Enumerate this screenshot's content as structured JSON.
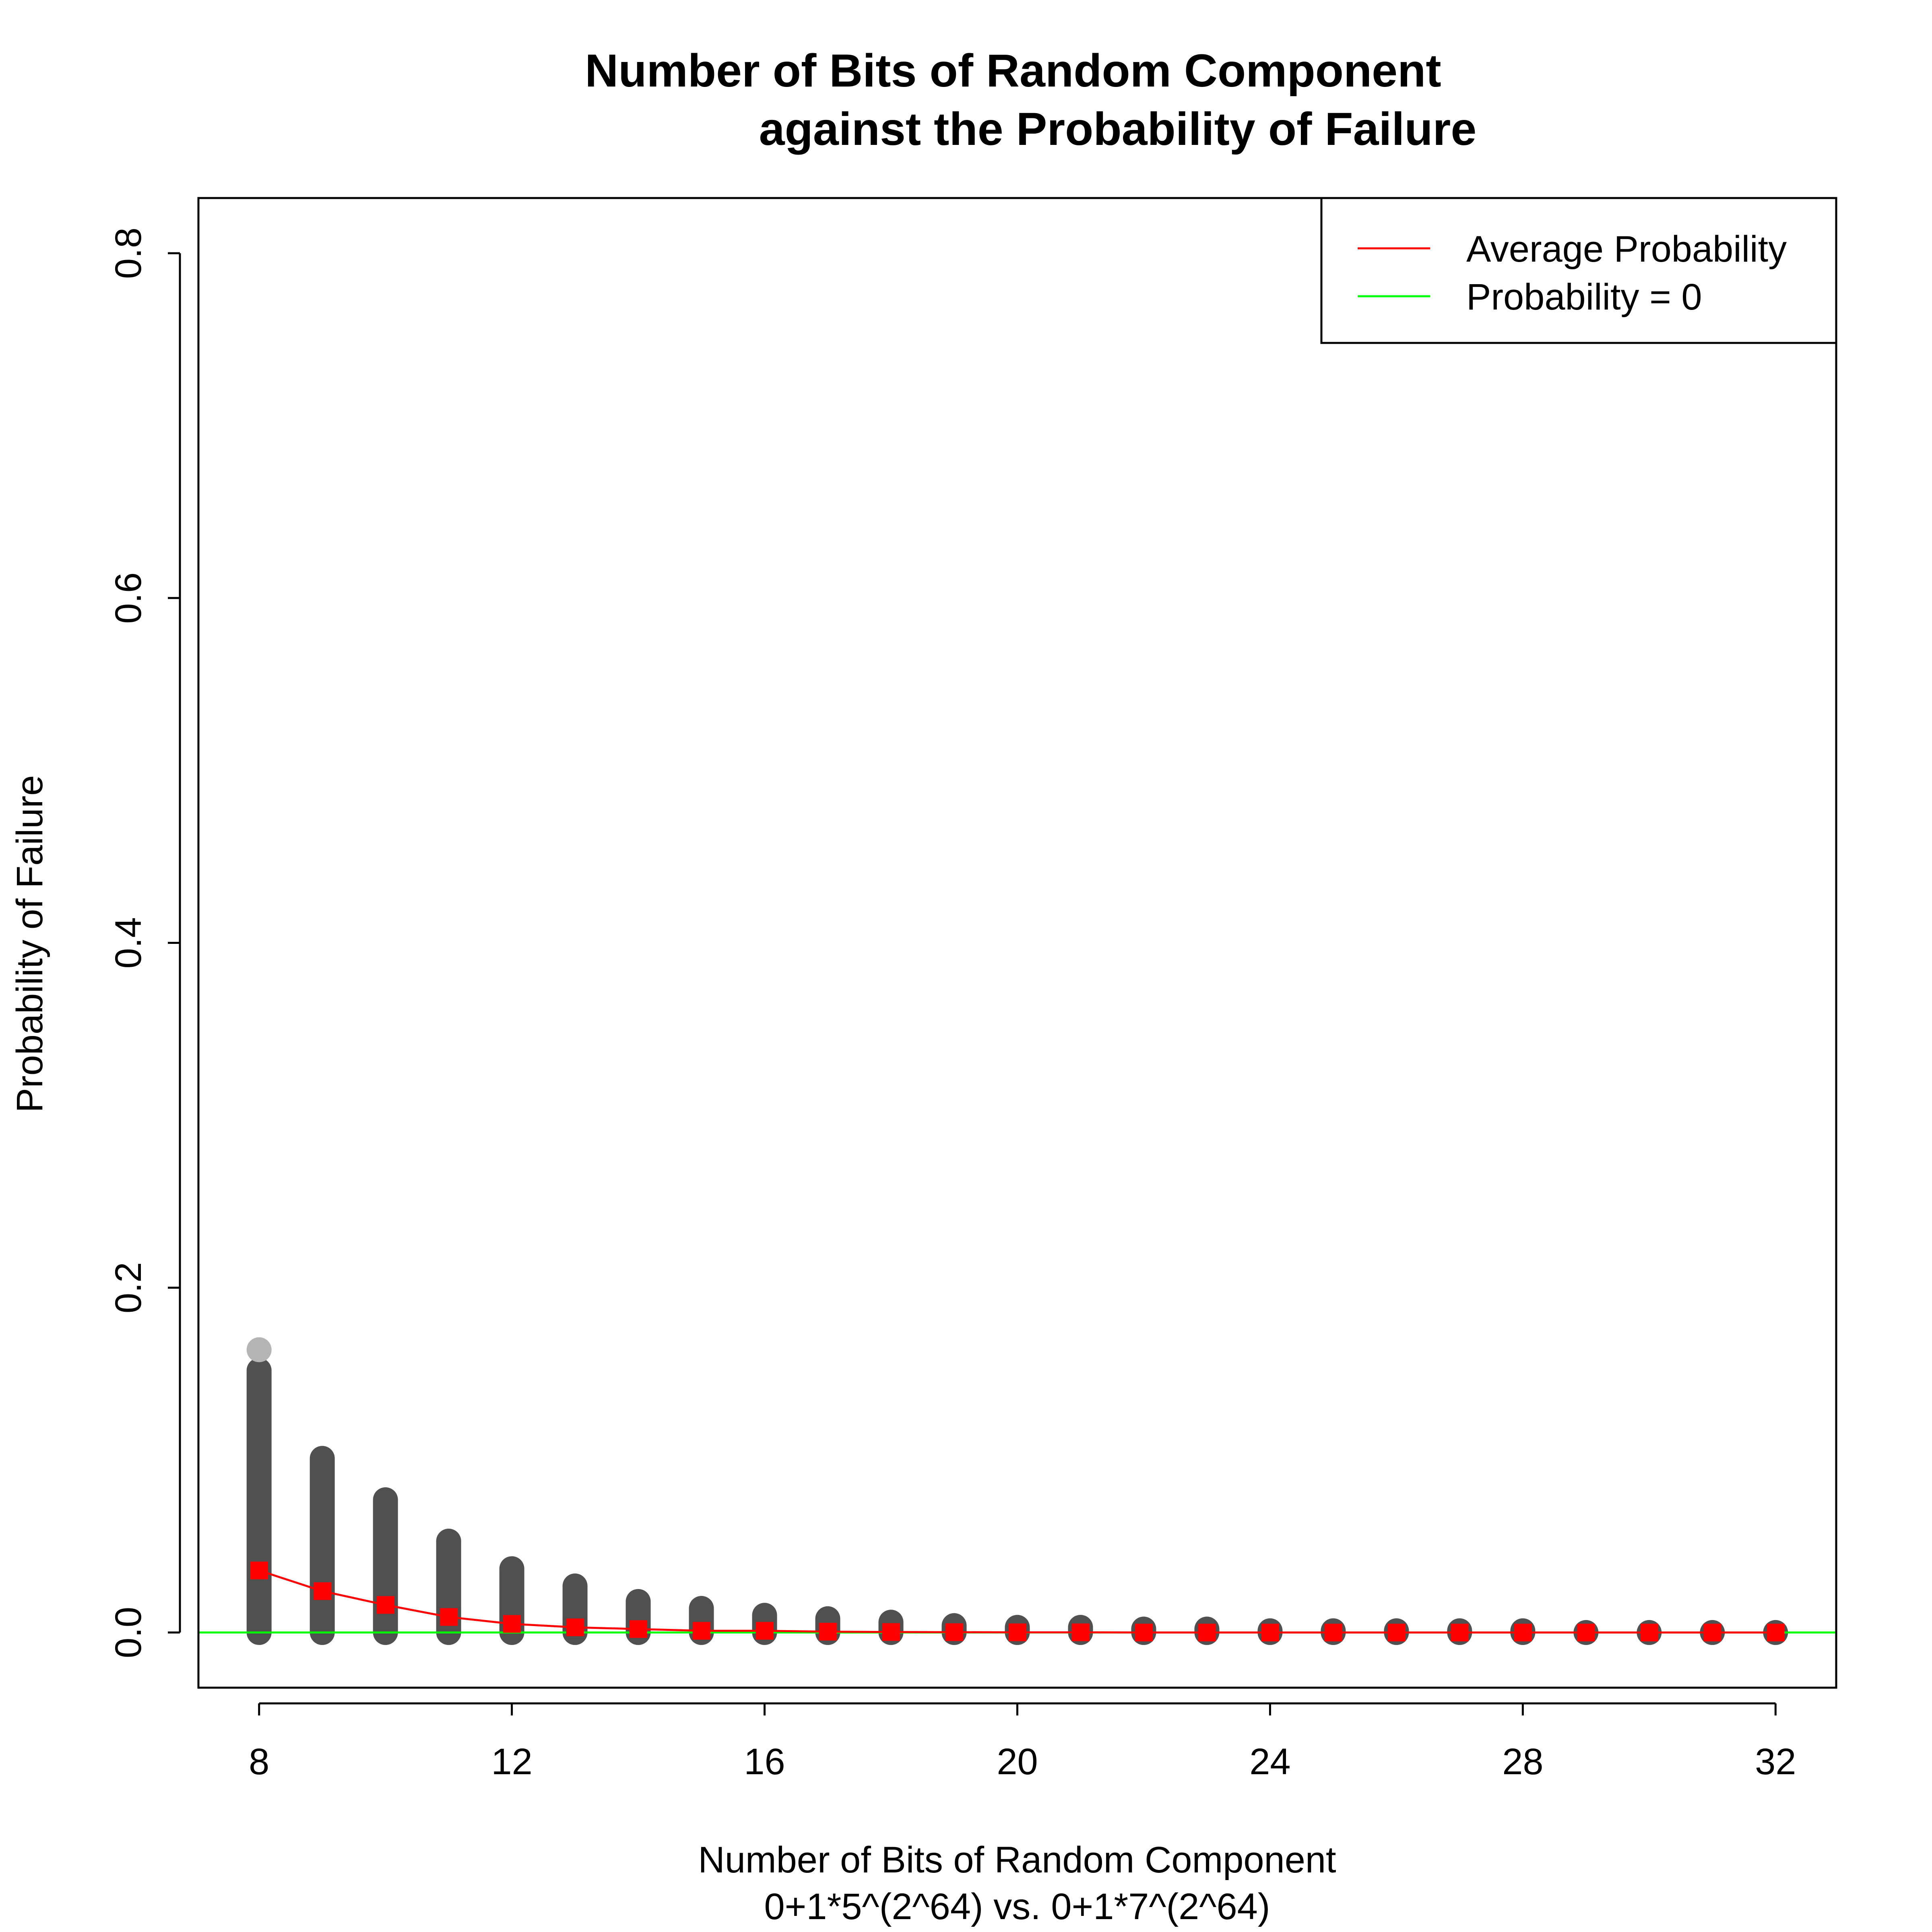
{
  "chart_data": {
    "type": "scatter",
    "title_line1": "Number of Bits of Random Component",
    "title_line2": "against the Probability of Failure",
    "xlabel_line1": "Number of Bits of Random Component",
    "xlabel_line2": "0+1*5^(2^64) vs. 0+1*7^(2^64)",
    "ylabel": "Probability of Failure",
    "xlim": [
      7.04,
      32.96
    ],
    "ylim": [
      -0.032,
      0.832
    ],
    "x_ticks": [
      8,
      12,
      16,
      20,
      24,
      28,
      32
    ],
    "x_tick_labels": [
      "8",
      "12",
      "16",
      "20",
      "24",
      "28",
      "32"
    ],
    "y_ticks": [
      0.0,
      0.2,
      0.4,
      0.6,
      0.8
    ],
    "y_tick_labels": [
      "0.0",
      "0.2",
      "0.4",
      "0.6",
      "0.8"
    ],
    "grid": false,
    "legend_position": "top-right",
    "series": [
      {
        "name": "",
        "kind": "distribution-points",
        "color": "#505050",
        "points": [
          {
            "x": 8,
            "min": 0.0,
            "max": 0.152,
            "outlier": 0.164
          },
          {
            "x": 9,
            "min": 0.0,
            "max": 0.101
          },
          {
            "x": 10,
            "min": 0.0,
            "max": 0.077
          },
          {
            "x": 11,
            "min": 0.0,
            "max": 0.053
          },
          {
            "x": 12,
            "min": 0.0,
            "max": 0.037
          },
          {
            "x": 13,
            "min": 0.0,
            "max": 0.027
          },
          {
            "x": 14,
            "min": 0.0,
            "max": 0.018
          },
          {
            "x": 15,
            "min": 0.0,
            "max": 0.014
          },
          {
            "x": 16,
            "min": 0.0,
            "max": 0.01
          },
          {
            "x": 17,
            "min": 0.0,
            "max": 0.008
          },
          {
            "x": 18,
            "min": 0.0,
            "max": 0.006
          },
          {
            "x": 19,
            "min": 0.0,
            "max": 0.004
          },
          {
            "x": 20,
            "min": 0.0,
            "max": 0.003
          },
          {
            "x": 21,
            "min": 0.0,
            "max": 0.003
          },
          {
            "x": 22,
            "min": 0.0,
            "max": 0.002
          },
          {
            "x": 23,
            "min": 0.0,
            "max": 0.002
          },
          {
            "x": 24,
            "min": 0.0,
            "max": 0.001
          },
          {
            "x": 25,
            "min": 0.0,
            "max": 0.001
          },
          {
            "x": 26,
            "min": 0.0,
            "max": 0.001
          },
          {
            "x": 27,
            "min": 0.0,
            "max": 0.001
          },
          {
            "x": 28,
            "min": 0.0,
            "max": 0.001
          },
          {
            "x": 29,
            "min": 0.0,
            "max": 0.0
          },
          {
            "x": 30,
            "min": 0.0,
            "max": 0.0
          },
          {
            "x": 31,
            "min": 0.0,
            "max": 0.0
          },
          {
            "x": 32,
            "min": 0.0,
            "max": 0.0
          }
        ]
      },
      {
        "name": "Average Probability",
        "kind": "line-with-markers",
        "color": "#ff0000",
        "x": [
          8,
          9,
          10,
          11,
          12,
          13,
          14,
          15,
          16,
          17,
          18,
          19,
          20,
          21,
          22,
          23,
          24,
          25,
          26,
          27,
          28,
          29,
          30,
          31,
          32
        ],
        "y": [
          0.036,
          0.024,
          0.016,
          0.009,
          0.005,
          0.003,
          0.002,
          0.001,
          0.001,
          0.0005,
          0.0003,
          0.0002,
          0.0001,
          0.0001,
          0.0,
          0.0,
          0.0,
          0.0,
          0.0,
          0.0,
          0.0,
          0.0,
          0.0,
          0.0,
          0.0
        ]
      },
      {
        "name": "Probability = 0",
        "kind": "horizontal-line",
        "color": "#00ff00",
        "y": 0.0
      }
    ]
  }
}
